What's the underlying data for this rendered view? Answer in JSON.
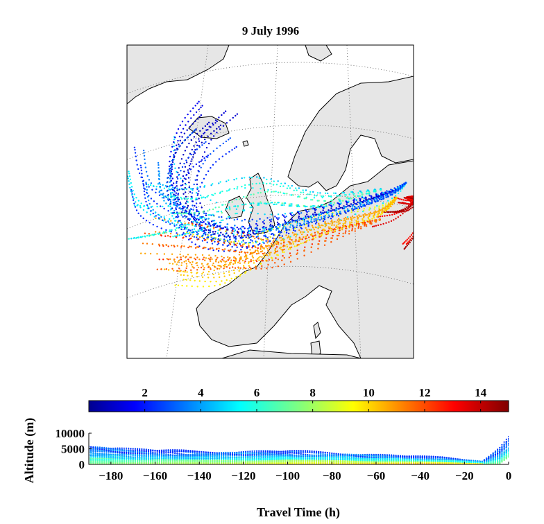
{
  "chart_data": [
    {
      "type": "map-trajectories",
      "title": "9 July 1996",
      "note_colors": "trajectory points coloured by value on the shared colorbar",
      "trajectory_count_approx": 80,
      "sample_trajectories": [
        {
          "color_value": 2,
          "points_lonlat": [
            [
              -15,
              63
            ],
            [
              -20,
              60
            ],
            [
              -22,
              55
            ],
            [
              -18,
              50
            ],
            [
              -8,
              48
            ],
            [
              5,
              50
            ],
            [
              20,
              53
            ],
            [
              28,
              55
            ]
          ]
        },
        {
          "color_value": 4,
          "points_lonlat": [
            [
              -30,
              58
            ],
            [
              -28,
              54
            ],
            [
              -20,
              51
            ],
            [
              -5,
              49
            ],
            [
              10,
              51
            ],
            [
              25,
              54
            ],
            [
              30,
              56
            ]
          ]
        },
        {
          "color_value": 6,
          "points_lonlat": [
            [
              -28,
              52
            ],
            [
              -20,
              52
            ],
            [
              -5,
              54
            ],
            [
              10,
              53
            ],
            [
              25,
              55
            ]
          ]
        },
        {
          "color_value": 10,
          "points_lonlat": [
            [
              -20,
              46
            ],
            [
              -10,
              45
            ],
            [
              0,
              47
            ],
            [
              12,
              50
            ],
            [
              24,
              52
            ],
            [
              28,
              54
            ]
          ]
        },
        {
          "color_value": 12,
          "points_lonlat": [
            [
              -25,
              48
            ],
            [
              -12,
              47
            ],
            [
              0,
              46
            ],
            [
              14,
              49
            ],
            [
              25,
              51
            ]
          ]
        },
        {
          "color_value": 14,
          "points_lonlat": [
            [
              28,
              50
            ],
            [
              31,
              51
            ],
            [
              33,
              53
            ],
            [
              30,
              54
            ]
          ]
        }
      ]
    },
    {
      "type": "colorbar",
      "colormap": "jet",
      "range": [
        0,
        15
      ],
      "ticks": [
        2,
        4,
        6,
        8,
        10,
        12,
        14
      ],
      "tick_labels": [
        "2",
        "4",
        "6",
        "8",
        "10",
        "12",
        "14"
      ]
    },
    {
      "type": "scatter",
      "xlabel": "Travel Time (h)",
      "ylabel": "Altitude (m)",
      "xlim": [
        -190,
        0
      ],
      "ylim": [
        0,
        10000
      ],
      "xticks": [
        -180,
        -160,
        -140,
        -120,
        -100,
        -80,
        -60,
        -40,
        -20,
        0
      ],
      "xtick_labels": [
        "−180",
        "−160",
        "−140",
        "−120",
        "−100",
        "−80",
        "−60",
        "−40",
        "−20",
        "0"
      ],
      "yticks": [
        0,
        5000,
        10000
      ],
      "ytick_labels": [
        "0",
        "5000",
        "10000"
      ],
      "series_profile": [
        {
          "time_h": -190,
          "altitude_max_m": 7000,
          "altitude_min_m": 0
        },
        {
          "time_h": -170,
          "altitude_max_m": 5500,
          "altitude_min_m": 0
        },
        {
          "time_h": -140,
          "altitude_max_m": 4500,
          "altitude_min_m": 0
        },
        {
          "time_h": -100,
          "altitude_max_m": 4800,
          "altitude_min_m": 0
        },
        {
          "time_h": -60,
          "altitude_max_m": 3500,
          "altitude_min_m": 0
        },
        {
          "time_h": -30,
          "altitude_max_m": 2500,
          "altitude_min_m": 0
        },
        {
          "time_h": -12,
          "altitude_max_m": 1200,
          "altitude_min_m": 0
        },
        {
          "time_h": -4,
          "altitude_max_m": 6000,
          "altitude_min_m": 0
        },
        {
          "time_h": 0,
          "altitude_max_m": 9500,
          "altitude_min_m": 2000
        }
      ]
    }
  ]
}
